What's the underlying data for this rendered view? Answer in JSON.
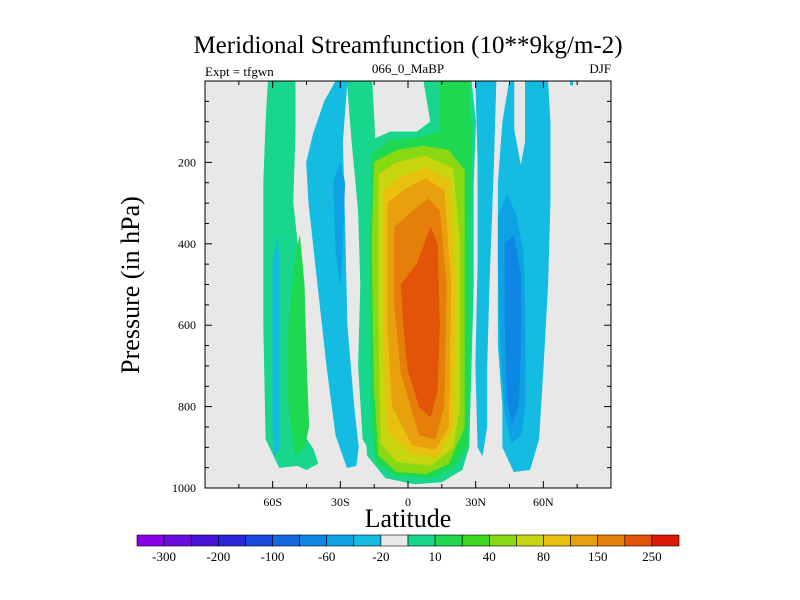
{
  "chart_data": {
    "type": "heatmap",
    "title": "Meridional Streamfunction (10**9kg/m-2)",
    "left_string": "Expt = tfgwn",
    "center_string": "066_0_MaBP",
    "right_string": "DJF",
    "xlabel": "Latitude",
    "ylabel": "Pressure (in hPa)",
    "xlim": [
      -90,
      90
    ],
    "ylim": [
      0,
      1000
    ],
    "x_ticks": [
      {
        "value": -60,
        "label": "60S"
      },
      {
        "value": -30,
        "label": "30S"
      },
      {
        "value": 0,
        "label": "0"
      },
      {
        "value": 30,
        "label": "30N"
      },
      {
        "value": 60,
        "label": "60N"
      }
    ],
    "y_ticks": [
      {
        "value": 200,
        "label": "200"
      },
      {
        "value": 400,
        "label": "400"
      },
      {
        "value": 600,
        "label": "600"
      },
      {
        "value": 800,
        "label": "800"
      },
      {
        "value": 1000,
        "label": "1000"
      }
    ],
    "colorbar": {
      "levels": [
        -300,
        -250,
        -200,
        -150,
        -100,
        -80,
        -60,
        -40,
        -20,
        -10,
        10,
        20,
        40,
        60,
        80,
        100,
        150,
        200,
        250,
        300
      ],
      "labels": [
        "-300",
        "-200",
        "-100",
        "-60",
        "-20",
        "10",
        "40",
        "80",
        "150",
        "250"
      ],
      "colors": [
        "#8a00e6",
        "#6a0cdf",
        "#4a14d8",
        "#2a26dc",
        "#1848dc",
        "#1468e0",
        "#0e86e4",
        "#0ea2e4",
        "#14bce2",
        "#e8e8e8",
        "#18d68c",
        "#1ed850",
        "#3cd824",
        "#88d814",
        "#c8d610",
        "#e8c00e",
        "#e8a00c",
        "#e67e0a",
        "#e25408",
        "#dc1806"
      ]
    },
    "background_color": "#e8e8e8",
    "contours": [
      {
        "level": 10,
        "color": "#18d68c",
        "polygons": [
          [
            [
              -27,
              0
            ],
            [
              -16,
              0
            ],
            [
              -15,
              100
            ],
            [
              -14,
              240
            ],
            [
              -15,
              420
            ],
            [
              -14,
              640
            ],
            [
              -12,
              850
            ],
            [
              -11,
              920
            ],
            [
              -15,
              925
            ],
            [
              -20,
              880
            ],
            [
              -22,
              700
            ],
            [
              -21,
              500
            ],
            [
              -22,
              320
            ],
            [
              -25,
              140
            ]
          ],
          [
            [
              -49,
              945
            ],
            [
              -57,
              950
            ],
            [
              -63,
              880
            ],
            [
              -64,
              600
            ],
            [
              -64,
              420
            ],
            [
              -64,
              250
            ],
            [
              -63,
              100
            ],
            [
              -62,
              0
            ],
            [
              -50,
              0
            ],
            [
              -50,
              120
            ],
            [
              -51,
              300
            ],
            [
              -47,
              500
            ],
            [
              -46,
              700
            ],
            [
              -45,
              880
            ],
            [
              -42,
              905
            ],
            [
              -40,
              940
            ],
            [
              -45,
              955
            ]
          ],
          [
            [
              -19,
              840
            ],
            [
              -18,
              150
            ],
            [
              -8,
              125
            ],
            [
              4,
              125
            ],
            [
              10,
              100
            ],
            [
              7,
              0
            ],
            [
              28,
              0
            ],
            [
              30,
              100
            ],
            [
              29,
              250
            ],
            [
              29,
              500
            ],
            [
              28,
              700
            ],
            [
              27,
              900
            ],
            [
              24,
              955
            ],
            [
              15,
              985
            ],
            [
              3,
              990
            ],
            [
              -10,
              975
            ],
            [
              -18,
              920
            ]
          ]
        ]
      },
      {
        "level": 20,
        "color": "#1ed850",
        "polygons": [
          [
            [
              -50,
              440
            ],
            [
              -48,
              380
            ],
            [
              -46,
              500
            ],
            [
              -45,
              700
            ],
            [
              -44,
              850
            ],
            [
              -46,
              900
            ],
            [
              -50,
              920
            ],
            [
              -53,
              800
            ],
            [
              -53,
              600
            ]
          ],
          [
            [
              -16,
              180
            ],
            [
              -8,
              145
            ],
            [
              4,
              140
            ],
            [
              14,
              125
            ],
            [
              14,
              0
            ],
            [
              27,
              0
            ],
            [
              28,
              150
            ],
            [
              27,
              400
            ],
            [
              27,
              750
            ],
            [
              26,
              900
            ],
            [
              20,
              950
            ],
            [
              10,
              975
            ],
            [
              -5,
              970
            ],
            [
              -14,
              940
            ],
            [
              -16,
              850
            ],
            [
              -17,
              500
            ]
          ]
        ]
      },
      {
        "level": 40,
        "color": "#88d814",
        "polygons": [
          [
            [
              -15,
              200
            ],
            [
              -5,
              170
            ],
            [
              7,
              160
            ],
            [
              18,
              170
            ],
            [
              25,
              220
            ],
            [
              25,
              500
            ],
            [
              25,
              850
            ],
            [
              18,
              940
            ],
            [
              8,
              965
            ],
            [
              -5,
              960
            ],
            [
              -13,
              920
            ],
            [
              -15,
              750
            ],
            [
              -16,
              400
            ]
          ]
        ]
      },
      {
        "level": 60,
        "color": "#c8d610",
        "polygons": [
          [
            [
              -13,
              230
            ],
            [
              -5,
              200
            ],
            [
              8,
              185
            ],
            [
              20,
              215
            ],
            [
              23,
              400
            ],
            [
              23,
              800
            ],
            [
              20,
              900
            ],
            [
              10,
              945
            ],
            [
              -5,
              935
            ],
            [
              -12,
              890
            ],
            [
              -13,
              600
            ]
          ]
        ]
      },
      {
        "level": 80,
        "color": "#e8c00e",
        "polygons": [
          [
            [
              -11,
              270
            ],
            [
              -3,
              235
            ],
            [
              8,
              215
            ],
            [
              18,
              240
            ],
            [
              21,
              500
            ],
            [
              20,
              850
            ],
            [
              13,
              925
            ],
            [
              1,
              915
            ],
            [
              -9,
              860
            ],
            [
              -11,
              600
            ]
          ]
        ]
      },
      {
        "level": 100,
        "color": "#e8a00c",
        "polygons": [
          [
            [
              -9,
              300
            ],
            [
              -1,
              265
            ],
            [
              8,
              240
            ],
            [
              16,
              270
            ],
            [
              19,
              500
            ],
            [
              18,
              850
            ],
            [
              12,
              905
            ],
            [
              2,
              895
            ],
            [
              -7,
              800
            ],
            [
              -9,
              600
            ]
          ]
        ]
      },
      {
        "level": 150,
        "color": "#e67e0a",
        "polygons": [
          [
            [
              -6,
              360
            ],
            [
              2,
              320
            ],
            [
              9,
              290
            ],
            [
              14,
              320
            ],
            [
              17,
              500
            ],
            [
              16,
              800
            ],
            [
              12,
              880
            ],
            [
              5,
              870
            ],
            [
              -3,
              720
            ],
            [
              -6,
              550
            ]
          ]
        ]
      },
      {
        "level": 200,
        "color": "#e25408",
        "polygons": [
          [
            [
              -3,
              500
            ],
            [
              4,
              450
            ],
            [
              10,
              360
            ],
            [
              13,
              400
            ],
            [
              14,
              600
            ],
            [
              13,
              760
            ],
            [
              10,
              825
            ],
            [
              5,
              800
            ],
            [
              0,
              710
            ],
            [
              -2,
              600
            ]
          ]
        ]
      },
      {
        "level": -10,
        "color": "#14bce2",
        "polygons": [
          [
            [
              -60,
              650
            ],
            [
              -60,
              450
            ],
            [
              -58,
              380
            ],
            [
              -57,
              450
            ],
            [
              -57,
              700
            ],
            [
              -57,
              900
            ],
            [
              -59,
              920
            ],
            [
              -60,
              860
            ]
          ],
          [
            [
              -45,
              200
            ],
            [
              -42,
              130
            ],
            [
              -37,
              50
            ],
            [
              -32,
              0
            ],
            [
              -27,
              0
            ],
            [
              -29,
              150
            ],
            [
              -28,
              350
            ],
            [
              -27,
              600
            ],
            [
              -24,
              800
            ],
            [
              -22,
              900
            ],
            [
              -23,
              945
            ],
            [
              -27,
              950
            ],
            [
              -32,
              870
            ],
            [
              -36,
              700
            ],
            [
              -41,
              450
            ],
            [
              -44,
              300
            ]
          ],
          [
            [
              45,
              0
            ],
            [
              42,
              100
            ],
            [
              40,
              250
            ],
            [
              40,
              450
            ],
            [
              40,
              650
            ],
            [
              42,
              800
            ],
            [
              42,
              900
            ],
            [
              47,
              960
            ],
            [
              54,
              955
            ],
            [
              58,
              880
            ],
            [
              60,
              700
            ],
            [
              62,
              500
            ],
            [
              63,
              300
            ],
            [
              63,
              100
            ],
            [
              62,
              0
            ],
            [
              52,
              0
            ],
            [
              52,
              150
            ],
            [
              50,
              210
            ],
            [
              47,
              120
            ],
            [
              47,
              0
            ]
          ],
          [
            [
              30,
              0
            ],
            [
              39,
              0
            ],
            [
              38,
              200
            ],
            [
              36,
              500
            ],
            [
              35,
              700
            ],
            [
              35,
              850
            ],
            [
              33,
              920
            ],
            [
              31,
              900
            ],
            [
              30,
              700
            ],
            [
              31,
              450
            ],
            [
              31,
              200
            ]
          ],
          [
            [
              72,
              0
            ],
            [
              73,
              0
            ],
            [
              73,
              10
            ],
            [
              72,
              10
            ]
          ]
        ]
      },
      {
        "level": -20,
        "color": "#0ea2e4",
        "polygons": [
          [
            [
              -33,
              250
            ],
            [
              -30,
              200
            ],
            [
              -28,
              250
            ],
            [
              -29,
              400
            ],
            [
              -30,
              500
            ],
            [
              -32,
              420
            ]
          ],
          [
            [
              40,
              330
            ],
            [
              44,
              280
            ],
            [
              48,
              330
            ],
            [
              51,
              420
            ],
            [
              52,
              600
            ],
            [
              52,
              800
            ],
            [
              50,
              870
            ],
            [
              46,
              890
            ],
            [
              43,
              820
            ],
            [
              41,
              650
            ],
            [
              40,
              450
            ]
          ]
        ]
      },
      {
        "level": -40,
        "color": "#0e86e4",
        "polygons": [
          [
            [
              43,
              400
            ],
            [
              47,
              380
            ],
            [
              50,
              480
            ],
            [
              50,
              650
            ],
            [
              49,
              800
            ],
            [
              46,
              840
            ],
            [
              44,
              780
            ],
            [
              43,
              600
            ]
          ]
        ]
      }
    ]
  }
}
